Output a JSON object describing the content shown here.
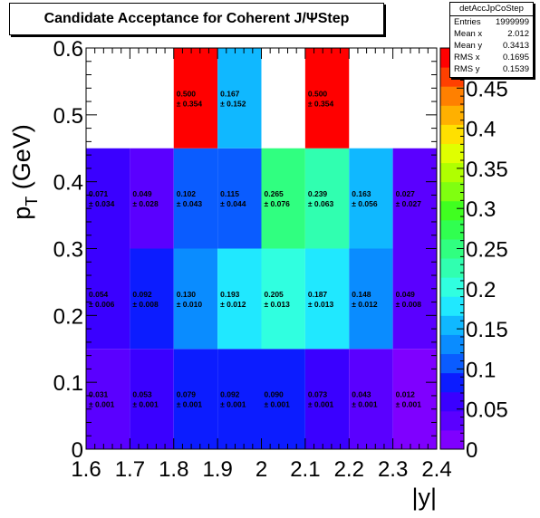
{
  "chart_data": {
    "type": "heatmap",
    "title": "Candidate Acceptance for Coherent J/ΨStep",
    "xlabel": "|y|",
    "ylabel": "p_T (GeV)",
    "ylabel_main": "p",
    "ylabel_sub": "T",
    "ylabel_unit": " (GeV)",
    "xlim": [
      1.6,
      2.4
    ],
    "ylim": [
      0,
      0.6
    ],
    "zlim": [
      0,
      0.5
    ],
    "x_edges": [
      1.6,
      1.7,
      1.8,
      1.9,
      2.0,
      2.1,
      2.2,
      2.3,
      2.4
    ],
    "y_edges": [
      0,
      0.15,
      0.3,
      0.45,
      0.6
    ],
    "x_ticks": [
      "1.6",
      "1.7",
      "1.8",
      "1.9",
      "2",
      "2.1",
      "2.2",
      "2.3",
      "2.4"
    ],
    "y_ticks": [
      "0",
      "0.1",
      "0.2",
      "0.3",
      "0.4",
      "0.5",
      "0.6"
    ],
    "z_ticks": [
      "0",
      "0.05",
      "0.1",
      "0.15",
      "0.2",
      "0.25",
      "0.3",
      "0.35",
      "0.4",
      "0.45"
    ],
    "cells": [
      [
        {
          "value": 0.031,
          "label": "0.031",
          "error": "± 0.001"
        },
        {
          "value": 0.053,
          "label": "0.053",
          "error": "± 0.001"
        },
        {
          "value": 0.079,
          "label": "0.079",
          "error": "± 0.001"
        },
        {
          "value": 0.092,
          "label": "0.092",
          "error": "± 0.001"
        },
        {
          "value": 0.09,
          "label": "0.090",
          "error": "± 0.001"
        },
        {
          "value": 0.073,
          "label": "0.073",
          "error": "± 0.001"
        },
        {
          "value": 0.043,
          "label": "0.043",
          "error": "± 0.001"
        },
        {
          "value": 0.012,
          "label": "0.012",
          "error": "± 0.001"
        }
      ],
      [
        {
          "value": 0.054,
          "label": "0.054",
          "error": "± 0.006"
        },
        {
          "value": 0.092,
          "label": "0.092",
          "error": "± 0.008"
        },
        {
          "value": 0.13,
          "label": "0.130",
          "error": "± 0.010"
        },
        {
          "value": 0.193,
          "label": "0.193",
          "error": "± 0.012"
        },
        {
          "value": 0.205,
          "label": "0.205",
          "error": "± 0.013"
        },
        {
          "value": 0.187,
          "label": "0.187",
          "error": "± 0.013"
        },
        {
          "value": 0.148,
          "label": "0.148",
          "error": "± 0.012"
        },
        {
          "value": 0.049,
          "label": "0.049",
          "error": "± 0.008"
        }
      ],
      [
        {
          "value": 0.071,
          "label": "0.071",
          "error": "± 0.034"
        },
        {
          "value": 0.049,
          "label": "0.049",
          "error": "± 0.028"
        },
        {
          "value": 0.102,
          "label": "0.102",
          "error": "± 0.043"
        },
        {
          "value": 0.115,
          "label": "0.115",
          "error": "± 0.044"
        },
        {
          "value": 0.265,
          "label": "0.265",
          "error": "± 0.076"
        },
        {
          "value": 0.239,
          "label": "0.239",
          "error": "± 0.063"
        },
        {
          "value": 0.163,
          "label": "0.163",
          "error": "± 0.056"
        },
        {
          "value": 0.027,
          "label": "0.027",
          "error": "± 0.027"
        }
      ],
      [
        null,
        null,
        {
          "value": 0.5,
          "label": "0.500",
          "error": "± 0.354"
        },
        {
          "value": 0.167,
          "label": "0.167",
          "error": "± 0.152"
        },
        null,
        {
          "value": 0.5,
          "label": "0.500",
          "error": "± 0.354"
        },
        null,
        null
      ]
    ],
    "palette": [
      "#7f00ff",
      "#5a00ff",
      "#3a00ff",
      "#0c1cff",
      "#0a5cff",
      "#0a8cff",
      "#10b8ff",
      "#20e8ff",
      "#30ffe0",
      "#30ffb0",
      "#30ff80",
      "#30ff50",
      "#40ff20",
      "#80ff10",
      "#b0ff00",
      "#e0ff00",
      "#ffe000",
      "#ffb000",
      "#ff8000",
      "#ff4000",
      "#ff0000"
    ],
    "stats": {
      "name": "detAccJpCoStep",
      "rows": [
        {
          "label": "Entries",
          "value": "1999999"
        },
        {
          "label": "Mean x",
          "value": "2.012"
        },
        {
          "label": "Mean y",
          "value": "0.3413"
        },
        {
          "label": "RMS x",
          "value": "0.1695"
        },
        {
          "label": "RMS y",
          "value": "0.1539"
        }
      ]
    }
  }
}
